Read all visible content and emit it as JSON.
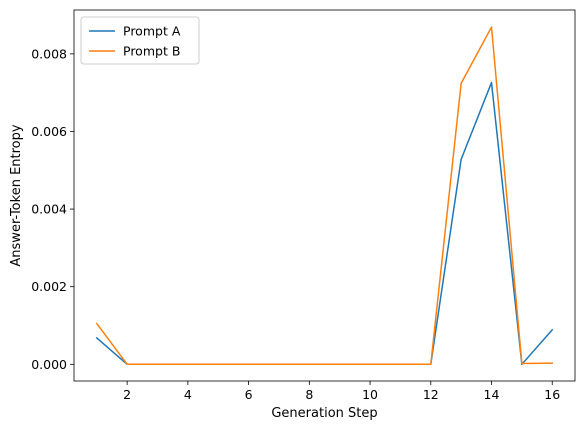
{
  "chart_data": {
    "type": "line",
    "title": "",
    "xlabel": "Generation Step",
    "ylabel": "Answer-Token Entropy",
    "x": [
      1,
      2,
      3,
      4,
      5,
      6,
      7,
      8,
      9,
      10,
      11,
      12,
      13,
      14,
      15,
      16
    ],
    "series": [
      {
        "name": "Prompt A",
        "color": "#1f77b4",
        "values": [
          0.00068,
          0.0,
          0.0,
          0.0,
          0.0,
          0.0,
          0.0,
          0.0,
          0.0,
          0.0,
          0.0,
          0.0,
          0.00528,
          0.00726,
          0.0,
          0.00089
        ]
      },
      {
        "name": "Prompt B",
        "color": "#ff7f0e",
        "values": [
          0.00105,
          0.0,
          0.0,
          0.0,
          0.0,
          0.0,
          0.0,
          0.0,
          0.0,
          0.0,
          0.0,
          0.0,
          0.00724,
          0.00869,
          2e-05,
          3e-05
        ]
      }
    ],
    "xlim": [
      0.25,
      16.75
    ],
    "ylim": [
      -0.00043,
      0.00913
    ],
    "xticks": [
      2,
      4,
      6,
      8,
      10,
      12,
      14,
      16
    ],
    "xtick_labels": [
      "2",
      "4",
      "6",
      "8",
      "10",
      "12",
      "14",
      "16"
    ],
    "yticks": [
      0.0,
      0.002,
      0.004,
      0.006,
      0.008
    ],
    "ytick_labels": [
      "0.000",
      "0.002",
      "0.004",
      "0.006",
      "0.008"
    ],
    "grid": false,
    "legend_position": "top-left"
  }
}
